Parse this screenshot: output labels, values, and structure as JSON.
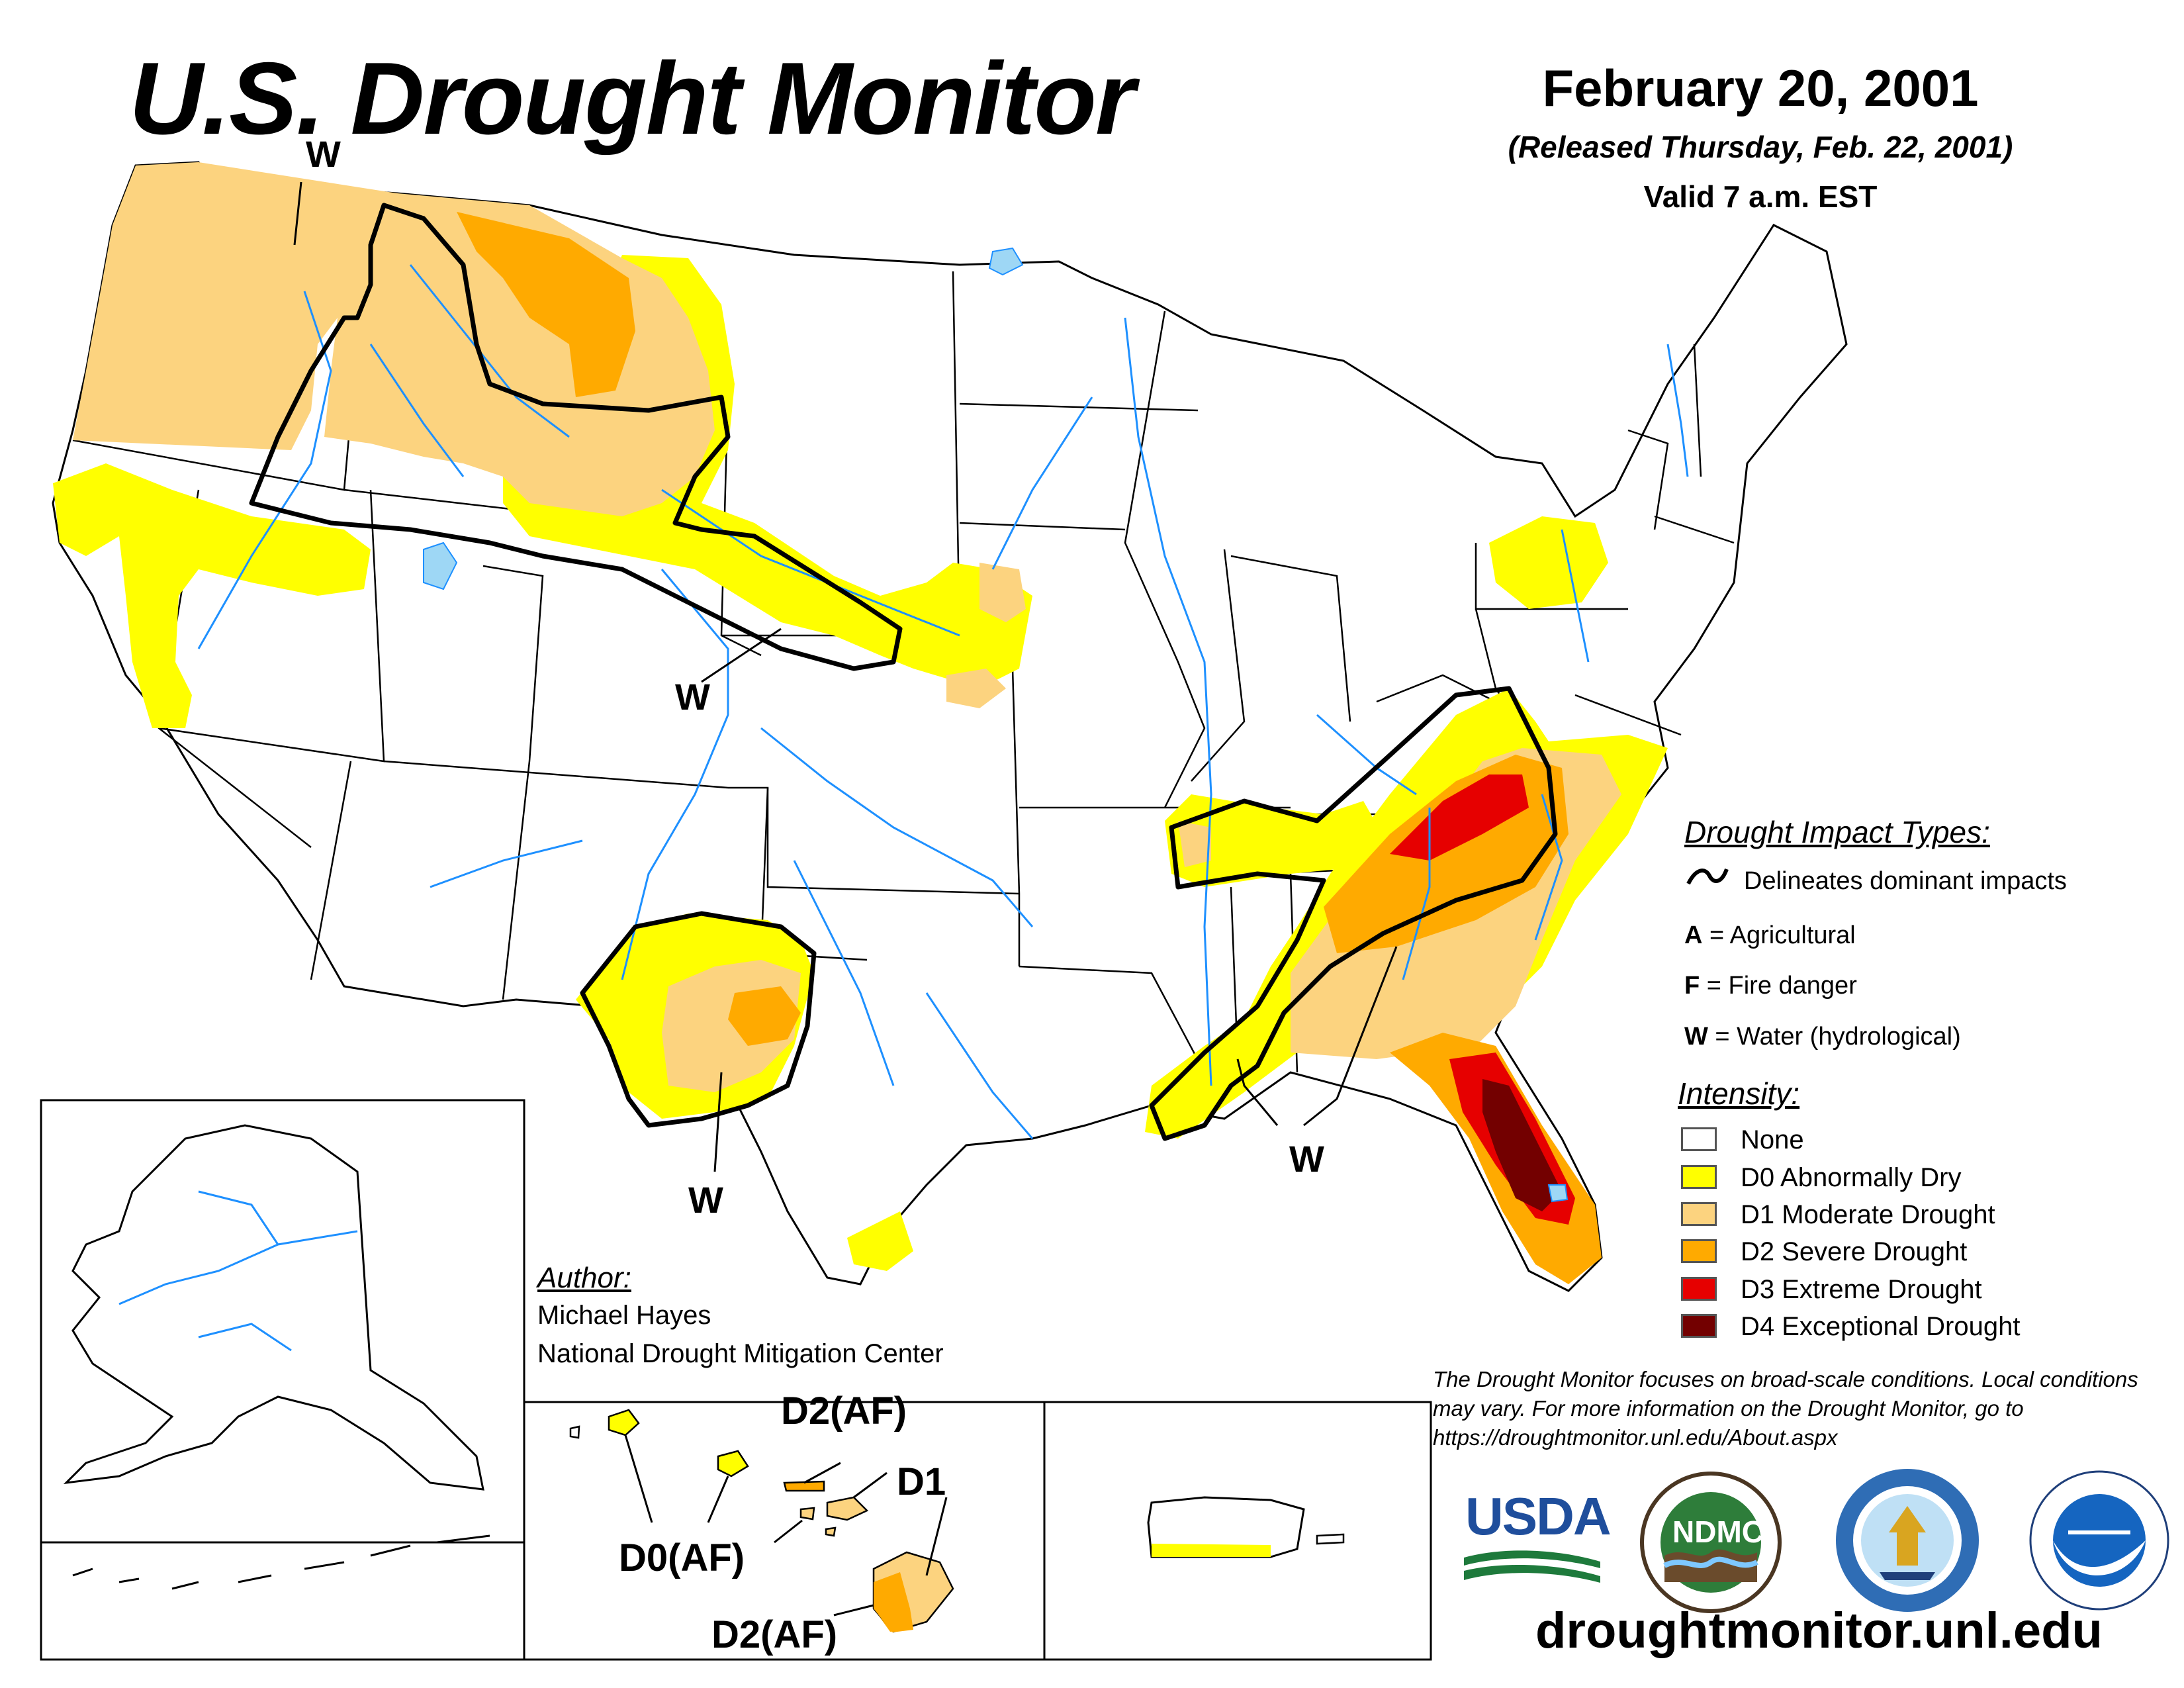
{
  "header": {
    "title": "U.S. Drought Monitor",
    "date": "February 20, 2001",
    "released": "(Released Thursday, Feb. 22, 2001)",
    "valid": "Valid 7 a.m. EST"
  },
  "map_labels": {
    "w_northwest": "W",
    "w_central": "W",
    "w_texas": "W",
    "w_southeast": "W",
    "hawaii_d2af_top": "D2(AF)",
    "hawaii_d1": "D1",
    "hawaii_d0af": "D0(AF)",
    "hawaii_d2af_bottom": "D2(AF)"
  },
  "impact_legend": {
    "heading": "Drought Impact Types:",
    "delineates": "Delineates dominant impacts",
    "items": [
      {
        "code": "A",
        "text": " = Agricultural"
      },
      {
        "code": "F",
        "text": " = Fire danger"
      },
      {
        "code": "W",
        "text": " = Water (hydrological)"
      }
    ]
  },
  "intensity_legend": {
    "heading": "Intensity:",
    "items": [
      {
        "label": "None",
        "color": "#ffffff"
      },
      {
        "label": "D0 Abnormally Dry",
        "color": "#ffff00"
      },
      {
        "label": "D1 Moderate Drought",
        "color": "#fcd37f"
      },
      {
        "label": "D2 Severe Drought",
        "color": "#ffaa00"
      },
      {
        "label": "D3 Extreme Drought",
        "color": "#e60000"
      },
      {
        "label": "D4 Exceptional Drought",
        "color": "#730000"
      }
    ]
  },
  "author": {
    "heading": "Author:",
    "name": "Michael Hayes",
    "organization": "National Drought Mitigation Center"
  },
  "note": "The Drought Monitor focuses on broad-scale conditions. Local conditions may vary. For more information on the Drought Monitor, go to https://droughtmonitor.unl.edu/About.aspx",
  "logos": {
    "usda": "USDA",
    "ndmc": "NDMC"
  },
  "website": "droughtmonitor.unl.edu",
  "colors": {
    "none": "#ffffff",
    "d0": "#ffff00",
    "d1": "#fcd37f",
    "d2": "#ffaa00",
    "d3": "#e60000",
    "d4": "#730000",
    "water": "#1e90ff",
    "lake": "#9ed7f5"
  }
}
